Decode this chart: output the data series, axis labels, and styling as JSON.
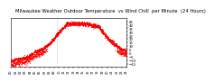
{
  "title": "Milwaukee Weather Outdoor Temperature  vs Wind Chill  per Minute  (24 Hours)",
  "title_fontsize": 3.8,
  "title_color": "#000000",
  "background_color": "#ffffff",
  "dot_color": "#ff0000",
  "dot_size": 0.4,
  "tick_fontsize": 2.8,
  "ylim": [
    -20,
    50
  ],
  "yticks": [
    -15,
    -10,
    -5,
    0,
    5,
    10,
    15,
    20,
    25,
    30,
    35,
    40,
    45
  ],
  "vline_x": 0.4,
  "vline_color": "#aaaaaa",
  "xlim": [
    0,
    1440
  ]
}
